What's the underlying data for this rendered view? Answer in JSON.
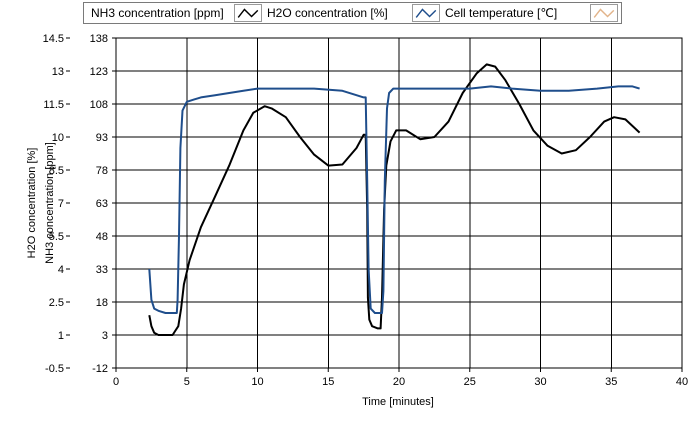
{
  "chart_data": {
    "type": "line",
    "legend": {
      "placement": "top",
      "entries": [
        {
          "label": "NH3 concentration [ppm]",
          "color": "#000000"
        },
        {
          "label": "H2O concentration [%]",
          "color": "#1f4e8c"
        },
        {
          "label": "Cell temperature [℃]",
          "color": "#e2b48a"
        }
      ]
    },
    "xlabel": "Time [minutes]",
    "ylabel_left_outer": "H2O concentration [%]",
    "ylabel_left_inner": "NH3 concentration [ppm]",
    "xlim": [
      0,
      40
    ],
    "ylim_ppm": [
      -12,
      138
    ],
    "ylim_pct": [
      -0.5,
      14.5
    ],
    "x_ticks": [
      "0",
      "5",
      "10",
      "15",
      "20",
      "25",
      "30",
      "35",
      "40"
    ],
    "y_ticks_ppm": [
      "-12",
      "3",
      "18",
      "33",
      "48",
      "63",
      "78",
      "93",
      "108",
      "123",
      "138"
    ],
    "y_ticks_pct": [
      "-0.5",
      "1",
      "2.5",
      "4",
      "5.5",
      "7",
      "8.5",
      "10",
      "11.5",
      "13",
      "14.5"
    ],
    "grid": true,
    "series": [
      {
        "name": "NH3 concentration [ppm]",
        "axis": "ppm",
        "color": "#000000",
        "points": [
          [
            2.35,
            12
          ],
          [
            2.5,
            7
          ],
          [
            2.7,
            4
          ],
          [
            3.0,
            3
          ],
          [
            3.5,
            3
          ],
          [
            4.0,
            3
          ],
          [
            4.2,
            5
          ],
          [
            4.4,
            7
          ],
          [
            4.6,
            15
          ],
          [
            4.8,
            26
          ],
          [
            5.2,
            37
          ],
          [
            6.0,
            52
          ],
          [
            7.0,
            66
          ],
          [
            8.0,
            80
          ],
          [
            9.0,
            96
          ],
          [
            9.7,
            104
          ],
          [
            10.5,
            107
          ],
          [
            11.0,
            106
          ],
          [
            12.0,
            102
          ],
          [
            13.0,
            93
          ],
          [
            14.0,
            85
          ],
          [
            15.0,
            80
          ],
          [
            16.0,
            80.5
          ],
          [
            17.0,
            88
          ],
          [
            17.5,
            94
          ],
          [
            17.65,
            94
          ],
          [
            17.75,
            60
          ],
          [
            17.8,
            20
          ],
          [
            17.9,
            10
          ],
          [
            18.1,
            7
          ],
          [
            18.5,
            6
          ],
          [
            18.7,
            6
          ],
          [
            18.8,
            20
          ],
          [
            18.95,
            60
          ],
          [
            19.1,
            80
          ],
          [
            19.4,
            91
          ],
          [
            19.8,
            96
          ],
          [
            20.5,
            96
          ],
          [
            21.5,
            92
          ],
          [
            22.5,
            93
          ],
          [
            23.5,
            100
          ],
          [
            24.5,
            113
          ],
          [
            25.5,
            122
          ],
          [
            26.2,
            126
          ],
          [
            26.8,
            125
          ],
          [
            27.5,
            119
          ],
          [
            28.5,
            108
          ],
          [
            29.5,
            96
          ],
          [
            30.5,
            89
          ],
          [
            31.5,
            85.5
          ],
          [
            32.5,
            87
          ],
          [
            33.5,
            93
          ],
          [
            34.5,
            100
          ],
          [
            35.2,
            102
          ],
          [
            36.0,
            101
          ],
          [
            36.5,
            98
          ],
          [
            37.0,
            95
          ]
        ]
      },
      {
        "name": "H2O concentration [%]",
        "axis": "pct",
        "color": "#1f4e8c",
        "points": [
          [
            2.35,
            4.0
          ],
          [
            2.5,
            2.6
          ],
          [
            2.7,
            2.2
          ],
          [
            3.0,
            2.1
          ],
          [
            3.5,
            2.0
          ],
          [
            4.0,
            2.0
          ],
          [
            4.3,
            2.0
          ],
          [
            4.35,
            2.6
          ],
          [
            4.45,
            5.5
          ],
          [
            4.55,
            9.5
          ],
          [
            4.7,
            11.2
          ],
          [
            5.0,
            11.6
          ],
          [
            5.5,
            11.7
          ],
          [
            6.0,
            11.8
          ],
          [
            7.0,
            11.9
          ],
          [
            8.0,
            12.0
          ],
          [
            9.0,
            12.1
          ],
          [
            10.0,
            12.2
          ],
          [
            11.0,
            12.2
          ],
          [
            12.0,
            12.2
          ],
          [
            14.0,
            12.2
          ],
          [
            16.0,
            12.1
          ],
          [
            17.0,
            11.9
          ],
          [
            17.5,
            11.8
          ],
          [
            17.65,
            11.8
          ],
          [
            17.75,
            8.0
          ],
          [
            17.85,
            4.0
          ],
          [
            18.0,
            2.2
          ],
          [
            18.3,
            2.0
          ],
          [
            18.8,
            2.0
          ],
          [
            18.9,
            3.0
          ],
          [
            19.0,
            8.0
          ],
          [
            19.15,
            11.3
          ],
          [
            19.3,
            12.0
          ],
          [
            19.6,
            12.2
          ],
          [
            20.0,
            12.2
          ],
          [
            22.0,
            12.2
          ],
          [
            25.0,
            12.2
          ],
          [
            26.5,
            12.3
          ],
          [
            28.0,
            12.2
          ],
          [
            30.0,
            12.1
          ],
          [
            32.0,
            12.1
          ],
          [
            34.0,
            12.2
          ],
          [
            35.5,
            12.3
          ],
          [
            36.5,
            12.3
          ],
          [
            37.0,
            12.2
          ]
        ]
      },
      {
        "name": "Cell temperature [℃]",
        "axis": "pct",
        "color": "#e2b48a",
        "points": []
      }
    ]
  }
}
